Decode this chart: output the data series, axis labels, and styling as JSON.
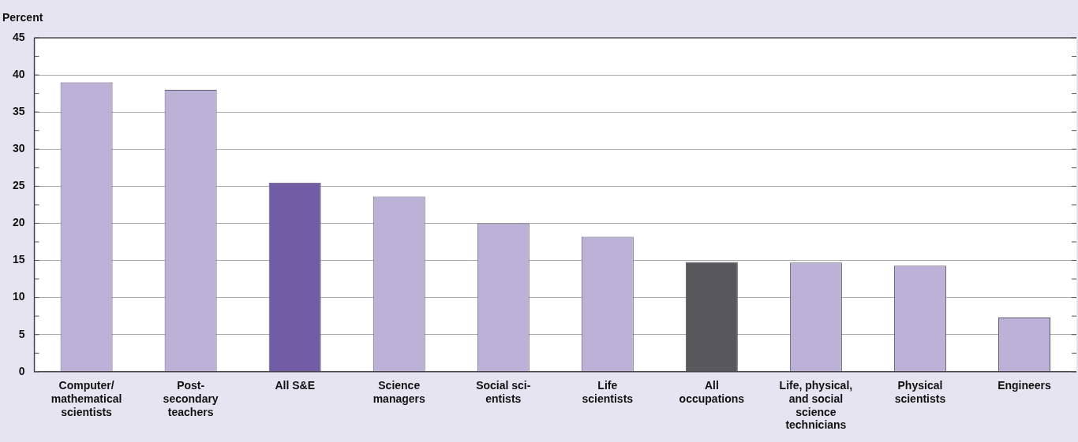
{
  "chart_data": {
    "type": "bar",
    "ylabel": "Percent",
    "categories": [
      "Computer/\nmathematical\nscientists",
      "Post-\nsecondary\nteachers",
      "All S&E",
      "Science\nmanagers",
      "Social sci-\nentists",
      "Life\nscientists",
      "All\noccupations",
      "Life, physical,\nand social\nscience\ntechnicians",
      "Physical\nscientists",
      "Engineers"
    ],
    "values": [
      39,
      38,
      25.5,
      23.6,
      20,
      18.2,
      14.8,
      14.7,
      14.3,
      7.3
    ],
    "colors": [
      "#bcb1d6",
      "#bcb1d6",
      "#735ca6",
      "#bcb1d6",
      "#bcb1d6",
      "#bcb1d6",
      "#58585c",
      "#bcb1d6",
      "#bcb1d6",
      "#bcb1d6"
    ],
    "ylim": [
      0,
      45
    ],
    "yticks": [
      0,
      {
        "value": 2.5,
        "label": null
      },
      5,
      {
        "value": 7.5,
        "label": null
      },
      10,
      {
        "value": 12.5,
        "label": null
      },
      15,
      {
        "value": 17.5,
        "label": null
      },
      20,
      {
        "value": 22.5,
        "label": null
      },
      25,
      {
        "value": 27.5,
        "label": null
      },
      30,
      {
        "value": 32.5,
        "label": null
      },
      35,
      {
        "value": 37.5,
        "label": null
      },
      40,
      {
        "value": 42.5,
        "label": null
      },
      45
    ],
    "grid": "y",
    "legend": false
  }
}
